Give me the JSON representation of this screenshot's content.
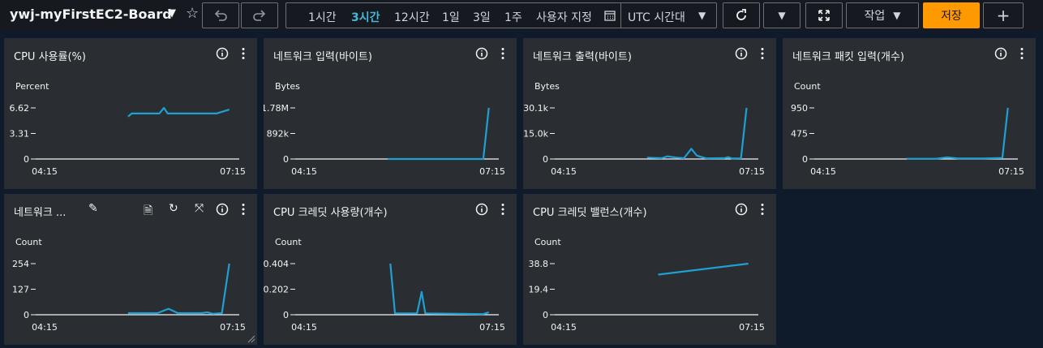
{
  "header": {
    "title": "ywj-myFirstEC2-Board",
    "time_ranges": [
      "1시간",
      "3시간",
      "12시간",
      "1일",
      "3일",
      "1주",
      "사용자 지정"
    ],
    "active_range_index": 1,
    "timezone": "UTC 시간대",
    "actions_label": "작업",
    "save_label": "저장",
    "add_label": "+"
  },
  "widgets": [
    {
      "title": "CPU 사용률(%)",
      "unit": "Percent",
      "yticks": [
        "6.62",
        "3.31",
        "0"
      ],
      "ymax": 6.62,
      "xticks": [
        "04:15",
        "07:15"
      ],
      "points": [
        [
          0.44,
          5.5
        ],
        [
          0.46,
          5.9
        ],
        [
          0.61,
          5.9
        ],
        [
          0.635,
          6.62
        ],
        [
          0.655,
          5.9
        ],
        [
          0.92,
          5.9
        ],
        [
          0.99,
          6.4
        ]
      ]
    },
    {
      "title": "네트워크 입력(바이트)",
      "unit": "Bytes",
      "yticks": [
        "1.78M",
        "892k",
        "0"
      ],
      "ymax": 1.78,
      "xticks": [
        "04:15",
        "07:15"
      ],
      "points": [
        [
          0.44,
          0
        ],
        [
          0.96,
          0
        ],
        [
          0.99,
          1.78
        ]
      ]
    },
    {
      "title": "네트워크 출력(바이트)",
      "unit": "Bytes",
      "yticks": [
        "30.1k",
        "15.0k",
        "0"
      ],
      "ymax": 30.1,
      "xticks": [
        "04:15",
        "07:15"
      ],
      "points": [
        [
          0.44,
          0.8
        ],
        [
          0.52,
          0.5
        ],
        [
          0.55,
          1.6
        ],
        [
          0.6,
          0.8
        ],
        [
          0.64,
          0.5
        ],
        [
          0.68,
          6.0
        ],
        [
          0.71,
          2.0
        ],
        [
          0.76,
          0.4
        ],
        [
          0.86,
          0.5
        ],
        [
          0.88,
          1.1
        ],
        [
          0.9,
          0.3
        ],
        [
          0.95,
          0.4
        ],
        [
          0.98,
          30.1
        ]
      ]
    },
    {
      "title": "네트워크 패킷 입력(개수)",
      "unit": "Count",
      "yticks": [
        "950",
        "475",
        "0"
      ],
      "ymax": 950,
      "xticks": [
        "04:15",
        "07:15"
      ],
      "points": [
        [
          0.44,
          5
        ],
        [
          0.6,
          5
        ],
        [
          0.66,
          30
        ],
        [
          0.72,
          10
        ],
        [
          0.86,
          10
        ],
        [
          0.96,
          20
        ],
        [
          0.99,
          950
        ]
      ]
    },
    {
      "title": "네트워크 ...",
      "unit": "Count",
      "yticks": [
        "254",
        "127",
        "0"
      ],
      "ymax": 254,
      "xticks": [
        "04:15",
        "07:15"
      ],
      "points": [
        [
          0.44,
          8
        ],
        [
          0.6,
          8
        ],
        [
          0.66,
          30
        ],
        [
          0.71,
          8
        ],
        [
          0.84,
          8
        ],
        [
          0.87,
          12
        ],
        [
          0.9,
          5
        ],
        [
          0.95,
          8
        ],
        [
          0.99,
          254
        ]
      ]
    },
    {
      "title": "CPU 크레딧 사용량(개수)",
      "unit": "Count",
      "yticks": [
        "0.404",
        "0.202",
        "0"
      ],
      "ymax": 0.404,
      "xticks": [
        "04:15",
        "07:15"
      ],
      "points": [
        [
          0.455,
          0.404
        ],
        [
          0.48,
          0.01
        ],
        [
          0.6,
          0.01
        ],
        [
          0.625,
          0.18
        ],
        [
          0.645,
          0.01
        ],
        [
          0.96,
          0.005
        ],
        [
          0.99,
          0.02
        ]
      ]
    },
    {
      "title": "CPU 크레딧 밸런스(개수)",
      "unit": "Count",
      "yticks": [
        "38.8",
        "19.4",
        "0"
      ],
      "ymax": 38.8,
      "xticks": [
        "04:15",
        "07:15"
      ],
      "points": [
        [
          0.5,
          30.5
        ],
        [
          0.99,
          38.8
        ]
      ]
    }
  ],
  "colors": {
    "accent": "#44b9d6",
    "series": "#1ea0d3",
    "primary": "#ff9900"
  }
}
